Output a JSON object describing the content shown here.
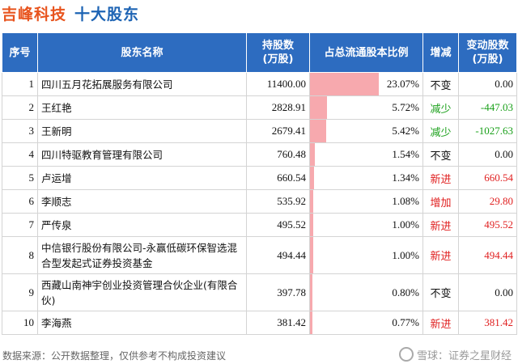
{
  "header": {
    "company": "吉峰科技",
    "subtitle": "十大股东"
  },
  "columns": {
    "idx": "序号",
    "name": "股东名称",
    "shares": "持股数\n(万股)",
    "pct": "占总流通股本比例",
    "change": "增减",
    "change_amount": "变动股数\n(万股)"
  },
  "rows": [
    {
      "idx": "1",
      "name": "四川五月花拓展服务有限公司",
      "shares": "11400.00",
      "pct": "23.07%",
      "pct_value": 23.07,
      "change": "不变",
      "change_amount": "0.00",
      "status": "same"
    },
    {
      "idx": "2",
      "name": "王红艳",
      "shares": "2828.91",
      "pct": "5.72%",
      "pct_value": 5.72,
      "change": "减少",
      "change_amount": "-447.03",
      "status": "down"
    },
    {
      "idx": "3",
      "name": "王新明",
      "shares": "2679.41",
      "pct": "5.42%",
      "pct_value": 5.42,
      "change": "减少",
      "change_amount": "-1027.63",
      "status": "down"
    },
    {
      "idx": "4",
      "name": "四川特驱教育管理有限公司",
      "shares": "760.48",
      "pct": "1.54%",
      "pct_value": 1.54,
      "change": "不变",
      "change_amount": "0.00",
      "status": "same"
    },
    {
      "idx": "5",
      "name": "卢运增",
      "shares": "660.54",
      "pct": "1.34%",
      "pct_value": 1.34,
      "change": "新进",
      "change_amount": "660.54",
      "status": "up"
    },
    {
      "idx": "6",
      "name": "李顺志",
      "shares": "535.92",
      "pct": "1.08%",
      "pct_value": 1.08,
      "change": "增加",
      "change_amount": "29.80",
      "status": "up"
    },
    {
      "idx": "7",
      "name": "严传泉",
      "shares": "495.52",
      "pct": "1.00%",
      "pct_value": 1.0,
      "change": "新进",
      "change_amount": "495.52",
      "status": "up"
    },
    {
      "idx": "8",
      "name": "中信银行股份有限公司-永赢低碳环保智选混合型发起式证券投资基金",
      "shares": "494.44",
      "pct": "1.00%",
      "pct_value": 1.0,
      "change": "新进",
      "change_amount": "494.44",
      "status": "up"
    },
    {
      "idx": "9",
      "name": "西藏山南神宇创业投资管理合伙企业(有限合伙)",
      "shares": "397.78",
      "pct": "0.80%",
      "pct_value": 0.8,
      "change": "不变",
      "change_amount": "0.00",
      "status": "same"
    },
    {
      "idx": "10",
      "name": "李海燕",
      "shares": "381.42",
      "pct": "0.77%",
      "pct_value": 0.77,
      "change": "新进",
      "change_amount": "381.42",
      "status": "up"
    }
  ],
  "pct_bar_scale_max": 23.07,
  "colors": {
    "header_bg": "#2d6cc0",
    "bar": "#f7a9ae",
    "up": "#e02020",
    "down": "#1aa01a",
    "same": "#111111",
    "company": "#e8541e",
    "subtitle": "#1e64b4"
  },
  "footer": {
    "source": "数据来源：公开数据整理，仅供参考不构成投资建议",
    "brand": "雪球：证券之星财经"
  }
}
